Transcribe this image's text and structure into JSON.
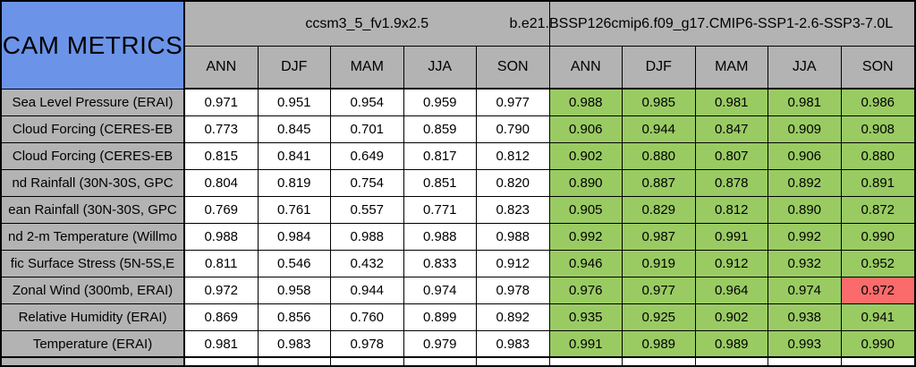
{
  "chart_data": {
    "type": "table",
    "title": "CAM METRICS",
    "column_groups": [
      "ccsm3_5_fv1.9x2.5",
      "b.e21.BSSP126cmip6.f09_g17.CMIP6-SSP1-2.6-SSP3-7.0L"
    ],
    "seasons": [
      "ANN",
      "DJF",
      "MAM",
      "JJA",
      "SON"
    ],
    "rows": [
      {
        "label": "Sea Level Pressure (ERAI)",
        "values": [
          "0.971",
          "0.951",
          "0.954",
          "0.959",
          "0.977",
          "0.988",
          "0.985",
          "0.981",
          "0.981",
          "0.986"
        ]
      },
      {
        "label": "Cloud Forcing (CERES-EB",
        "values": [
          "0.773",
          "0.845",
          "0.701",
          "0.859",
          "0.790",
          "0.906",
          "0.944",
          "0.847",
          "0.909",
          "0.908"
        ]
      },
      {
        "label": "Cloud Forcing (CERES-EB",
        "values": [
          "0.815",
          "0.841",
          "0.649",
          "0.817",
          "0.812",
          "0.902",
          "0.880",
          "0.807",
          "0.906",
          "0.880"
        ]
      },
      {
        "label": "nd Rainfall (30N-30S, GPC",
        "values": [
          "0.804",
          "0.819",
          "0.754",
          "0.851",
          "0.820",
          "0.890",
          "0.887",
          "0.878",
          "0.892",
          "0.891"
        ]
      },
      {
        "label": "ean Rainfall (30N-30S, GPC",
        "values": [
          "0.769",
          "0.761",
          "0.557",
          "0.771",
          "0.823",
          "0.905",
          "0.829",
          "0.812",
          "0.890",
          "0.872"
        ]
      },
      {
        "label": "nd 2-m Temperature (Willmo",
        "values": [
          "0.988",
          "0.984",
          "0.988",
          "0.988",
          "0.988",
          "0.992",
          "0.987",
          "0.991",
          "0.992",
          "0.990"
        ]
      },
      {
        "label": "fic Surface Stress (5N-5S,E",
        "values": [
          "0.811",
          "0.546",
          "0.432",
          "0.833",
          "0.912",
          "0.946",
          "0.919",
          "0.912",
          "0.932",
          "0.952"
        ]
      },
      {
        "label": "Zonal Wind (300mb, ERAI)",
        "values": [
          "0.972",
          "0.958",
          "0.944",
          "0.974",
          "0.978",
          "0.976",
          "0.977",
          "0.964",
          "0.974",
          "0.972"
        ]
      },
      {
        "label": "Relative Humidity (ERAI)",
        "values": [
          "0.869",
          "0.856",
          "0.760",
          "0.899",
          "0.892",
          "0.935",
          "0.925",
          "0.902",
          "0.938",
          "0.941"
        ]
      },
      {
        "label": "Temperature (ERAI)",
        "values": [
          "0.981",
          "0.983",
          "0.978",
          "0.979",
          "0.983",
          "0.991",
          "0.989",
          "0.989",
          "0.993",
          "0.990"
        ]
      }
    ],
    "highlight": {
      "row": 7,
      "col": 9,
      "color": "#fb6b6b"
    },
    "layout_hints": {
      "group1_cell_background": "white",
      "group2_cell_background": "green",
      "note": "second model name overflows its header cell and is clipped at right image edge"
    }
  },
  "colors": {
    "header_blue": "#6b94e8",
    "grid_gray": "#b3b3b3",
    "good_green": "#9acb63",
    "bad_red": "#fb6b6b",
    "cell_white": "#ffffff",
    "border_black": "#000000"
  }
}
